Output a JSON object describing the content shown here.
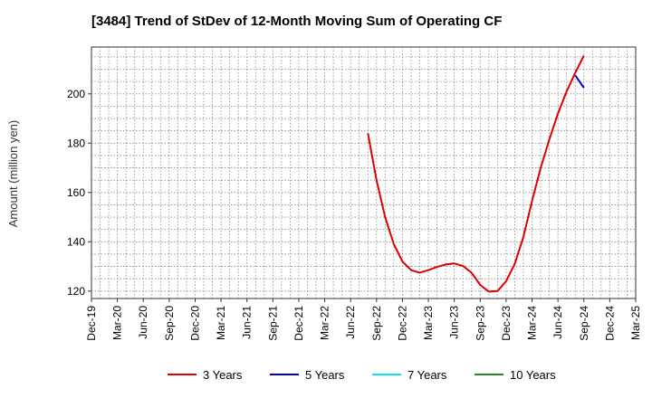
{
  "chart_data": {
    "type": "line",
    "title": "[3484]  Trend of StDev of 12-Month Moving Sum of Operating CF",
    "ylabel": "Amount (million yen)",
    "xlabel": "",
    "ylim": [
      117,
      219
    ],
    "yticks": [
      120,
      140,
      160,
      180,
      200
    ],
    "xlim": [
      "2019-12",
      "2025-03"
    ],
    "xtick_labels": [
      "Dec-19",
      "Mar-20",
      "Jun-20",
      "Sep-20",
      "Dec-20",
      "Mar-21",
      "Jun-21",
      "Sep-21",
      "Dec-21",
      "Mar-22",
      "Jun-22",
      "Sep-22",
      "Dec-22",
      "Mar-23",
      "Jun-23",
      "Sep-23",
      "Dec-23",
      "Mar-24",
      "Jun-24",
      "Sep-24",
      "Dec-24",
      "Mar-25"
    ],
    "grid": true,
    "legend_placement": "bottom",
    "series": [
      {
        "name": "3 Years",
        "color": "#dd0000",
        "x": [
          "2022-08",
          "2022-09",
          "2022-10",
          "2022-11",
          "2022-12",
          "2023-01",
          "2023-02",
          "2023-03",
          "2023-04",
          "2023-05",
          "2023-06",
          "2023-07",
          "2023-08",
          "2023-09",
          "2023-10",
          "2023-11",
          "2023-12",
          "2024-01",
          "2024-02",
          "2024-03",
          "2024-04",
          "2024-05",
          "2024-06",
          "2024-07",
          "2024-08",
          "2024-09"
        ],
        "values": [
          184,
          165,
          150,
          139,
          132,
          128.5,
          127.5,
          128.5,
          129.8,
          130.8,
          131.2,
          130.2,
          127.5,
          122.5,
          119.8,
          120,
          124,
          131,
          142,
          156.5,
          170,
          181.5,
          192,
          201,
          208.5,
          215.5
        ]
      },
      {
        "name": "5 Years",
        "color": "#0000cc",
        "x": [
          "2024-08",
          "2024-09"
        ],
        "values": [
          207.5,
          202.5
        ]
      },
      {
        "name": "7 Years",
        "color": "#00e5ee",
        "x": [],
        "values": []
      },
      {
        "name": "10 Years",
        "color": "#228b22",
        "x": [],
        "values": []
      }
    ]
  }
}
